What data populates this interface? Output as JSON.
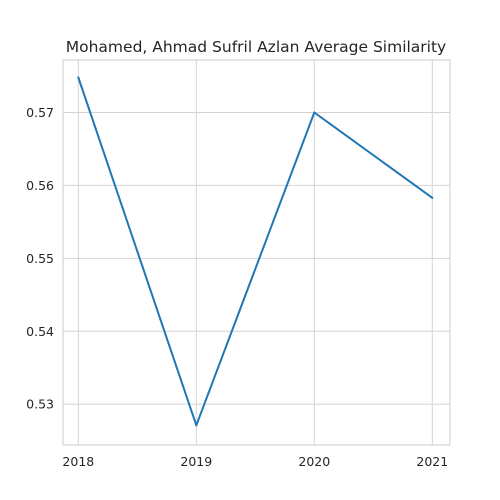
{
  "chart_data": {
    "type": "line",
    "title": "Mohamed, Ahmad Sufril Azlan Average Similarity",
    "xlabel": "",
    "ylabel": "",
    "x": [
      2018,
      2019,
      2020,
      2021
    ],
    "x_tick_labels": [
      "2018",
      "2019",
      "2020",
      "2021"
    ],
    "series": [
      {
        "values": [
          0.5748,
          0.5271,
          0.57,
          0.5583
        ],
        "color": "#1f77b4"
      }
    ],
    "yticks": [
      0.53,
      0.54,
      0.55,
      0.56,
      0.57
    ],
    "y_tick_labels": [
      "0.53",
      "0.54",
      "0.55",
      "0.56",
      "0.57"
    ],
    "xlim": [
      2017.87,
      2021.15
    ],
    "ylim": [
      0.5244,
      0.5772
    ],
    "grid": true,
    "legend": "none"
  }
}
